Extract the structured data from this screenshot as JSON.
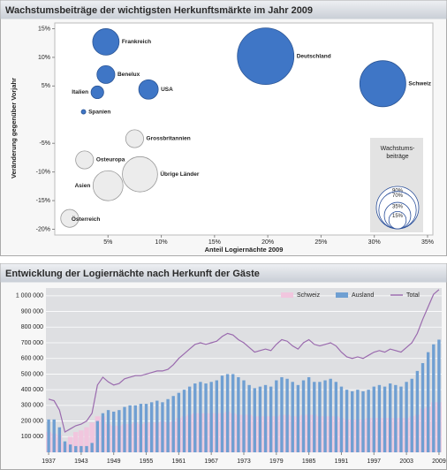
{
  "chart_data": [
    {
      "type": "bubble",
      "title": "Wachstumsbeiträge der wichtigsten Herkunftsmärkte im Jahr 2009",
      "xlabel": "Anteil Logiernächte 2009",
      "ylabel": "Veränderung gegenüber Vorjahr",
      "xlim": [
        0,
        35.5
      ],
      "ylim": [
        -21,
        16
      ],
      "xticks": [
        {
          "value": 5,
          "label": "5%"
        },
        {
          "value": 10,
          "label": "10%"
        },
        {
          "value": 15,
          "label": "15%"
        },
        {
          "value": 20,
          "label": "20%"
        },
        {
          "value": 25,
          "label": "25%"
        },
        {
          "value": 30,
          "label": "30%"
        },
        {
          "value": 35,
          "label": "35%"
        }
      ],
      "yticks": [
        {
          "value": 15,
          "label": "15%"
        },
        {
          "value": 10,
          "label": "10%"
        },
        {
          "value": 5,
          "label": "5%"
        },
        {
          "value": -5,
          "label": "-5%"
        },
        {
          "value": -10,
          "label": "-10%"
        },
        {
          "value": -15,
          "label": "-15%"
        },
        {
          "value": -20,
          "label": "-20%"
        }
      ],
      "color": "#3f76c6",
      "negative_color": "#ececec",
      "points": [
        {
          "label": "Frankreich",
          "x": 4.8,
          "y": 12.7,
          "size": 35
        },
        {
          "label": "Deutschland",
          "x": 19.8,
          "y": 10.2,
          "size": 160
        },
        {
          "label": "Schweiz",
          "x": 30.8,
          "y": 5.4,
          "size": 106
        },
        {
          "label": "Benelux",
          "x": 4.8,
          "y": 7.0,
          "size": 16
        },
        {
          "label": "Italien",
          "x": 4.0,
          "y": 3.9,
          "size": 8
        },
        {
          "label": "USA",
          "x": 8.8,
          "y": 4.4,
          "size": 19
        },
        {
          "label": "Spanien",
          "x": 2.7,
          "y": 0.5,
          "size": 1
        },
        {
          "label": "Grossbritannien",
          "x": 7.5,
          "y": -4.2,
          "size": 16
        },
        {
          "label": "Osteuropa",
          "x": 2.8,
          "y": -7.9,
          "size": 16
        },
        {
          "label": "Übrige Länder",
          "x": 8.0,
          "y": -10.4,
          "size": 62
        },
        {
          "label": "Asien",
          "x": 5.0,
          "y": -12.4,
          "size": 45
        },
        {
          "label": "Österreich",
          "x": 1.4,
          "y": -18.1,
          "size": 16
        }
      ],
      "size_legend": {
        "title": [
          "Wachstums-",
          "beiträge"
        ],
        "values": [
          {
            "value": 90,
            "label": "90%"
          },
          {
            "value": 70,
            "label": "70%"
          },
          {
            "value": 35,
            "label": "35%"
          },
          {
            "value": 15,
            "label": "15%"
          }
        ]
      }
    },
    {
      "type": "bar",
      "title": "Entwicklung der Logiernächte nach Herkunft der Gäste",
      "x": [
        1937,
        1938,
        1939,
        1940,
        1941,
        1942,
        1943,
        1944,
        1945,
        1946,
        1947,
        1948,
        1949,
        1950,
        1951,
        1952,
        1953,
        1954,
        1955,
        1956,
        1957,
        1958,
        1959,
        1960,
        1961,
        1962,
        1963,
        1964,
        1965,
        1966,
        1967,
        1968,
        1969,
        1970,
        1971,
        1972,
        1973,
        1974,
        1975,
        1976,
        1977,
        1978,
        1979,
        1980,
        1981,
        1982,
        1983,
        1984,
        1985,
        1986,
        1987,
        1988,
        1989,
        1990,
        1991,
        1992,
        1993,
        1994,
        1995,
        1996,
        1997,
        1998,
        1999,
        2000,
        2001,
        2002,
        2003,
        2004,
        2005,
        2006,
        2007,
        2008,
        2009
      ],
      "xlim": [
        1936.5,
        2009.5
      ],
      "xticks": [
        1937,
        1943,
        1949,
        1955,
        1961,
        1967,
        1973,
        1979,
        1985,
        1991,
        1997,
        2003,
        2009
      ],
      "ylim": [
        0,
        1050000
      ],
      "yticks": [
        {
          "value": 100000,
          "label": "100 000"
        },
        {
          "value": 200000,
          "label": "200 000"
        },
        {
          "value": 300000,
          "label": "300 000"
        },
        {
          "value": 400000,
          "label": "400 000"
        },
        {
          "value": 500000,
          "label": "500 000"
        },
        {
          "value": 600000,
          "label": "600 000"
        },
        {
          "value": 700000,
          "label": "700 000"
        },
        {
          "value": 800000,
          "label": "800 000"
        },
        {
          "value": 900000,
          "label": "900 000"
        },
        {
          "value": 1000000,
          "label": "1 000 000"
        }
      ],
      "grid": true,
      "legend": "top-right",
      "series": [
        {
          "name": "Schweiz",
          "type": "bar",
          "color": "#f1c6de",
          "values": [
            130000,
            120000,
            110000,
            60000,
            100000,
            130000,
            140000,
            160000,
            190000,
            230000,
            230000,
            180000,
            170000,
            170000,
            180000,
            180000,
            190000,
            180000,
            190000,
            190000,
            190000,
            200000,
            190000,
            200000,
            220000,
            230000,
            240000,
            250000,
            250000,
            250000,
            250000,
            250000,
            250000,
            260000,
            250000,
            240000,
            240000,
            240000,
            230000,
            230000,
            230000,
            230000,
            230000,
            240000,
            240000,
            230000,
            230000,
            240000,
            240000,
            240000,
            230000,
            230000,
            230000,
            230000,
            220000,
            210000,
            210000,
            210000,
            210000,
            220000,
            220000,
            220000,
            220000,
            220000,
            220000,
            220000,
            220000,
            230000,
            240000,
            280000,
            290000,
            320000,
            320000
          ]
        },
        {
          "name": "Ausland",
          "type": "bar",
          "color": "#6f9fd2",
          "values": [
            210000,
            210000,
            160000,
            70000,
            50000,
            40000,
            40000,
            40000,
            60000,
            200000,
            250000,
            270000,
            260000,
            270000,
            290000,
            300000,
            300000,
            310000,
            310000,
            320000,
            330000,
            320000,
            340000,
            360000,
            380000,
            400000,
            420000,
            440000,
            450000,
            440000,
            450000,
            460000,
            490000,
            500000,
            500000,
            480000,
            460000,
            430000,
            410000,
            420000,
            430000,
            420000,
            460000,
            480000,
            470000,
            450000,
            430000,
            460000,
            480000,
            450000,
            450000,
            460000,
            470000,
            450000,
            420000,
            400000,
            390000,
            400000,
            390000,
            400000,
            420000,
            430000,
            420000,
            440000,
            430000,
            420000,
            450000,
            470000,
            520000,
            570000,
            640000,
            690000,
            720000
          ]
        },
        {
          "name": "Total",
          "type": "line",
          "color": "#9a6aae",
          "values": [
            340000,
            330000,
            270000,
            130000,
            150000,
            170000,
            180000,
            200000,
            250000,
            430000,
            480000,
            450000,
            430000,
            440000,
            470000,
            480000,
            490000,
            490000,
            500000,
            510000,
            520000,
            520000,
            530000,
            560000,
            600000,
            630000,
            660000,
            690000,
            700000,
            690000,
            700000,
            710000,
            740000,
            760000,
            750000,
            720000,
            700000,
            670000,
            640000,
            650000,
            660000,
            650000,
            690000,
            720000,
            710000,
            680000,
            660000,
            700000,
            720000,
            690000,
            680000,
            690000,
            700000,
            680000,
            640000,
            610000,
            600000,
            610000,
            600000,
            620000,
            640000,
            650000,
            640000,
            660000,
            650000,
            640000,
            670000,
            700000,
            760000,
            850000,
            930000,
            1010000,
            1040000
          ]
        }
      ]
    }
  ]
}
